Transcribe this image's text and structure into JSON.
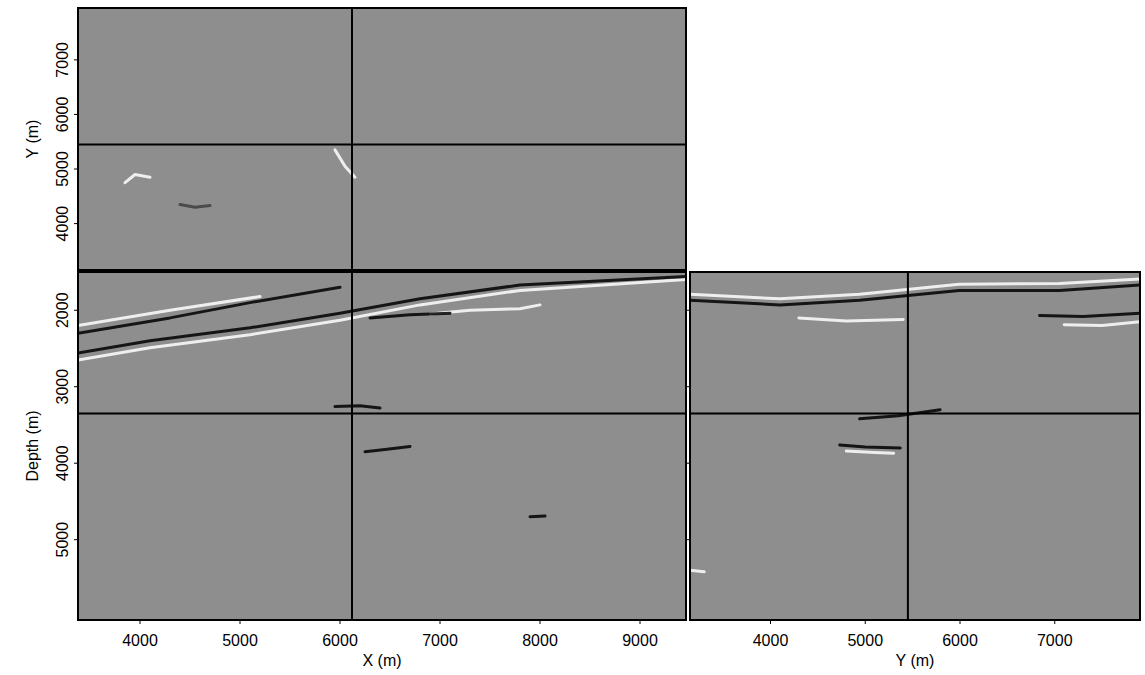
{
  "chart_data": [
    {
      "type": "image",
      "y_label": "Y (m)",
      "xlim": [
        3380,
        9460
      ],
      "ylim": [
        3150,
        7950
      ],
      "yticks": [
        4000,
        5000,
        6000,
        7000
      ],
      "tick_labels": "y",
      "crosshair": {
        "x": 6120,
        "y": 5450
      },
      "reflectors": [
        {
          "x": [
            3850,
            3950,
            4100
          ],
          "values": [
            4750,
            4900,
            4850
          ],
          "color": "#ffffff"
        },
        {
          "x": [
            4400,
            4550,
            4700
          ],
          "values": [
            4350,
            4300,
            4330
          ],
          "color": "#404040"
        },
        {
          "x": [
            5950,
            6050,
            6150
          ],
          "values": [
            5350,
            5050,
            4850
          ],
          "color": "#ffffff"
        }
      ]
    },
    {
      "type": "image",
      "x_label": "X (m)",
      "y_label": "Depth (m)",
      "xlim": [
        3380,
        9460
      ],
      "ylim": [
        6050,
        1500
      ],
      "xticks": [
        4000,
        5000,
        6000,
        7000,
        8000,
        9000
      ],
      "yticks": [
        2000,
        3000,
        4000,
        5000
      ],
      "tick_labels": true,
      "crosshair": {
        "x": 6120,
        "y": 3350
      },
      "reflectors": [
        {
          "x": [
            3380,
            4100,
            5100,
            6000,
            6800,
            7800,
            9460
          ],
          "values": [
            2650,
            2490,
            2320,
            2130,
            1930,
            1740,
            1600
          ],
          "color": "#ffffff"
        },
        {
          "x": [
            3380,
            4100,
            5100,
            6000,
            6800,
            7800,
            9460
          ],
          "values": [
            2560,
            2400,
            2230,
            2040,
            1850,
            1670,
            1560
          ],
          "color": "#000000"
        },
        {
          "x": [
            3380,
            4300,
            5100,
            6000
          ],
          "values": [
            2300,
            2100,
            1900,
            1700
          ],
          "color": "#000000"
        },
        {
          "x": [
            3380,
            4300,
            5200
          ],
          "values": [
            2200,
            2000,
            1820
          ],
          "color": "#ffffff"
        },
        {
          "x": [
            6900,
            7300,
            7800,
            8000
          ],
          "values": [
            2050,
            2000,
            1980,
            1930
          ],
          "color": "#ffffff"
        },
        {
          "x": [
            6300,
            6700,
            7100
          ],
          "values": [
            2100,
            2060,
            2040
          ],
          "color": "#000000"
        },
        {
          "x": [
            5950,
            6200,
            6400
          ],
          "values": [
            3260,
            3250,
            3280
          ],
          "color": "#000000"
        },
        {
          "x": [
            6250,
            6450,
            6700
          ],
          "values": [
            3850,
            3820,
            3780
          ],
          "color": "#000000"
        },
        {
          "x": [
            7900,
            8050
          ],
          "values": [
            4700,
            4690
          ],
          "color": "#000000"
        }
      ]
    },
    {
      "type": "image",
      "x_label": "Y (m)",
      "xlim": [
        3150,
        7900
      ],
      "ylim": [
        6050,
        1500
      ],
      "xticks": [
        4000,
        5000,
        6000,
        7000
      ],
      "yticks": [
        2000,
        3000,
        4000,
        5000
      ],
      "tick_labels": "x",
      "crosshair": {
        "x": 5450,
        "y": 3350
      },
      "reflectors": [
        {
          "x": [
            3150,
            4100,
            4940,
            5990,
            7050,
            7900
          ],
          "values": [
            1870,
            1930,
            1870,
            1740,
            1740,
            1670
          ],
          "color": "#000000"
        },
        {
          "x": [
            3150,
            4100,
            4940,
            5990,
            7050,
            7900
          ],
          "values": [
            1790,
            1850,
            1790,
            1660,
            1650,
            1590
          ],
          "color": "#ffffff"
        },
        {
          "x": [
            6840,
            7300,
            7900
          ],
          "values": [
            2070,
            2080,
            2040
          ],
          "color": "#000000"
        },
        {
          "x": [
            7100,
            7500,
            7900
          ],
          "values": [
            2190,
            2200,
            2150
          ],
          "color": "#ffffff"
        },
        {
          "x": [
            4300,
            4800,
            5400
          ],
          "values": [
            2100,
            2140,
            2120
          ],
          "color": "#ffffff"
        },
        {
          "x": [
            4940,
            5350,
            5790
          ],
          "values": [
            3420,
            3380,
            3300
          ],
          "color": "#000000"
        },
        {
          "x": [
            4730,
            5000,
            5370
          ],
          "values": [
            3760,
            3790,
            3800
          ],
          "color": "#000000"
        },
        {
          "x": [
            4800,
            5100,
            5300
          ],
          "values": [
            3840,
            3860,
            3870
          ],
          "color": "#ffffff"
        },
        {
          "x": [
            3150,
            3300
          ],
          "values": [
            5400,
            5420
          ],
          "color": "#ffffff"
        }
      ]
    }
  ]
}
